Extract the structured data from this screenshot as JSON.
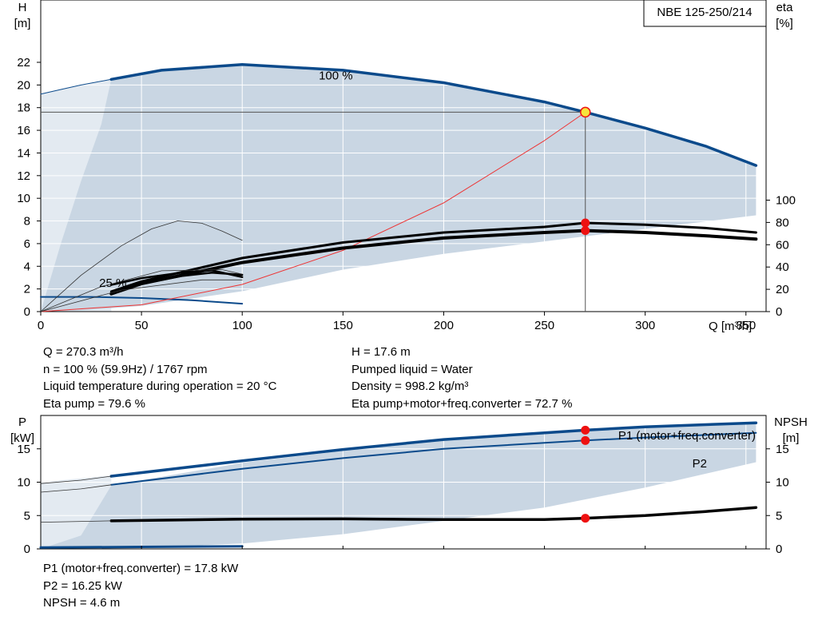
{
  "pump_name": "NBE 125-250/214",
  "colors": {
    "envelope": "#c9d6e3",
    "envelope_light": "#e3eaf1",
    "curve_blue": "#0b4a8b",
    "system_curve": "#ee3333",
    "marker": "#ee1111",
    "marker_duty": "#f7e53b",
    "guide": "#555555",
    "frame": "#000000"
  },
  "info": {
    "left": [
      "Q = 270.3 m³/h",
      "n = 100 % (59.9Hz) / 1767 rpm",
      "Liquid temperature during operation = 20 °C",
      "Eta pump = 79.6 %"
    ],
    "right": [
      "H = 17.6 m",
      "Pumped liquid = Water",
      "Density = 998.2 kg/m³",
      "Eta pump+motor+freq.converter = 72.7 %"
    ],
    "bottom": [
      "P1 (motor+freq.converter) = 17.8 kW",
      "P2 = 16.25 kW",
      "NPSH = 4.6 m"
    ]
  },
  "chart_data": [
    {
      "type": "line",
      "name": "QH / efficiency",
      "xlabel": "Q [m³/h]",
      "ylabel": "H\n[m]",
      "y2label": "eta\n[%]",
      "xlim": [
        0,
        360
      ],
      "xticks": [
        0,
        50,
        100,
        150,
        200,
        250,
        300,
        350
      ],
      "ylim": [
        0,
        27.5
      ],
      "yticks": [
        0,
        2,
        4,
        6,
        8,
        10,
        12,
        14,
        16,
        18,
        20,
        22
      ],
      "y2ticks": [
        0,
        20,
        40,
        60,
        80,
        100
      ],
      "grid": true,
      "annotations": [
        "100 %",
        "25 %"
      ],
      "duty_point": {
        "Q": 270.3,
        "H": 17.6,
        "eta_pump": 79.6,
        "eta_total": 72.7
      },
      "envelope": {
        "upper": [
          [
            0,
            0
          ],
          [
            10,
            6
          ],
          [
            20,
            11.5
          ],
          [
            30,
            16.5
          ],
          [
            35,
            20.5
          ],
          [
            60,
            21.3
          ],
          [
            100,
            21.8
          ],
          [
            150,
            21.3
          ],
          [
            200,
            20.2
          ],
          [
            250,
            18.5
          ],
          [
            270,
            17.7
          ],
          [
            300,
            16.2
          ],
          [
            330,
            14.6
          ],
          [
            355,
            12.9
          ],
          [
            355,
            8.5
          ]
        ],
        "lower": [
          [
            355,
            8.5
          ],
          [
            300,
            7.3
          ],
          [
            250,
            6.2
          ],
          [
            200,
            5.1
          ],
          [
            150,
            3.7
          ],
          [
            100,
            1.8
          ],
          [
            50,
            0.5
          ],
          [
            20,
            0.1
          ],
          [
            0,
            0
          ]
        ]
      },
      "series": [
        {
          "name": "100 %",
          "role": "qh_max",
          "points": [
            [
              35,
              20.5
            ],
            [
              60,
              21.3
            ],
            [
              100,
              21.8
            ],
            [
              150,
              21.3
            ],
            [
              200,
              20.2
            ],
            [
              250,
              18.5
            ],
            [
              270.3,
              17.6
            ],
            [
              300,
              16.2
            ],
            [
              330,
              14.6
            ],
            [
              355,
              12.9
            ]
          ]
        },
        {
          "role": "qh_extension",
          "points": [
            [
              0,
              19.2
            ],
            [
              10,
              19.6
            ],
            [
              20,
              20.0
            ],
            [
              35,
              20.5
            ]
          ]
        },
        {
          "role": "qh_min",
          "points": [
            [
              0,
              1.3
            ],
            [
              25,
              1.3
            ],
            [
              50,
              1.2
            ],
            [
              75,
              1.0
            ],
            [
              100,
              0.7
            ]
          ]
        },
        {
          "name": "system",
          "role": "system_curve",
          "points": [
            [
              0,
              0
            ],
            [
              50,
              0.6
            ],
            [
              100,
              2.4
            ],
            [
              150,
              5.4
            ],
            [
              200,
              9.6
            ],
            [
              250,
              15.1
            ],
            [
              270.3,
              17.6
            ]
          ]
        },
        {
          "role": "eta_pump_max",
          "axis": "eta",
          "points": [
            [
              35,
              18
            ],
            [
              50,
              27
            ],
            [
              100,
              48
            ],
            [
              150,
              62
            ],
            [
              200,
              71
            ],
            [
              250,
              76
            ],
            [
              270.3,
              79.6
            ],
            [
              300,
              78
            ],
            [
              330,
              75
            ],
            [
              355,
              71
            ]
          ]
        },
        {
          "role": "eta_total_max",
          "axis": "eta",
          "points": [
            [
              35,
              16
            ],
            [
              50,
              25
            ],
            [
              100,
              44
            ],
            [
              150,
              57
            ],
            [
              200,
              66
            ],
            [
              250,
              71
            ],
            [
              270.3,
              72.7
            ],
            [
              300,
              71
            ],
            [
              330,
              68
            ],
            [
              355,
              65
            ]
          ]
        },
        {
          "role": "eta_pump_min",
          "axis": "eta",
          "points": [
            [
              35,
              24
            ],
            [
              50,
              30
            ],
            [
              70,
              35
            ],
            [
              85,
              37
            ],
            [
              100,
              31
            ]
          ]
        },
        {
          "role": "eta_total_min",
          "axis": "eta",
          "points": [
            [
              35,
              17
            ],
            [
              50,
              25
            ],
            [
              70,
              32
            ],
            [
              85,
              35
            ],
            [
              100,
              33
            ]
          ]
        },
        {
          "role": "qh_thin_1",
          "points": [
            [
              0,
              0
            ],
            [
              20,
              3.2
            ],
            [
              40,
              5.8
            ],
            [
              55,
              7.3
            ],
            [
              68,
              8.0
            ],
            [
              80,
              7.8
            ],
            [
              90,
              7.1
            ],
            [
              100,
              6.3
            ]
          ]
        },
        {
          "role": "qh_thin_2",
          "points": [
            [
              0,
              0
            ],
            [
              30,
              2.2
            ],
            [
              60,
              3.6
            ],
            [
              90,
              3.7
            ],
            [
              100,
              3.3
            ]
          ]
        },
        {
          "role": "qh_thin_3",
          "points": [
            [
              0,
              0
            ],
            [
              40,
              1.9
            ],
            [
              80,
              2.8
            ],
            [
              100,
              2.8
            ]
          ]
        }
      ],
      "markers": [
        {
          "Q": 270.3,
          "value": 17.6,
          "axis": "H",
          "style": "duty"
        },
        {
          "Q": 270.3,
          "value": 79.6,
          "axis": "eta",
          "style": "point"
        },
        {
          "Q": 270.3,
          "value": 72.7,
          "axis": "eta",
          "style": "point"
        }
      ]
    },
    {
      "type": "line",
      "name": "Power / NPSH",
      "ylabel": "P\n[kW]",
      "y2label": "NPSH\n[m]",
      "xlim": [
        0,
        360
      ],
      "ylim": [
        0,
        20
      ],
      "yticks": [
        0,
        5,
        10,
        15
      ],
      "y2ticks": [
        0,
        5,
        10,
        15
      ],
      "grid": true,
      "envelope": {
        "upper": [
          [
            0,
            0
          ],
          [
            20,
            2
          ],
          [
            35,
            9.5
          ],
          [
            100,
            12.9
          ],
          [
            150,
            14.7
          ],
          [
            200,
            16.2
          ],
          [
            250,
            17.4
          ],
          [
            270,
            17.7
          ],
          [
            300,
            18.3
          ],
          [
            355,
            19.1
          ],
          [
            355,
            13
          ]
        ],
        "lower": [
          [
            355,
            13
          ],
          [
            300,
            9.2
          ],
          [
            250,
            6.2
          ],
          [
            200,
            4.2
          ],
          [
            150,
            2.2
          ],
          [
            100,
            0.8
          ],
          [
            50,
            0.2
          ],
          [
            0,
            0
          ]
        ]
      },
      "series": [
        {
          "name": "P1 (motor+freq.converter)",
          "role": "p1_max",
          "points": [
            [
              35,
              10.9
            ],
            [
              100,
              13.2
            ],
            [
              150,
              14.9
            ],
            [
              200,
              16.4
            ],
            [
              250,
              17.4
            ],
            [
              270.3,
              17.8
            ],
            [
              300,
              18.3
            ],
            [
              355,
              18.9
            ]
          ]
        },
        {
          "name": "P2",
          "role": "p2_max",
          "points": [
            [
              35,
              9.6
            ],
            [
              100,
              12.0
            ],
            [
              150,
              13.6
            ],
            [
              200,
              15.0
            ],
            [
              250,
              15.9
            ],
            [
              270.3,
              16.25
            ],
            [
              300,
              16.7
            ],
            [
              355,
              17.4
            ]
          ]
        },
        {
          "role": "p1_extension",
          "points": [
            [
              0,
              9.8
            ],
            [
              20,
              10.3
            ],
            [
              35,
              10.9
            ]
          ]
        },
        {
          "role": "p2_extension",
          "points": [
            [
              0,
              8.5
            ],
            [
              20,
              9.0
            ],
            [
              35,
              9.6
            ]
          ]
        },
        {
          "name": "NPSH",
          "role": "npsh",
          "axis": "npsh",
          "points": [
            [
              35,
              4.2
            ],
            [
              100,
              4.45
            ],
            [
              150,
              4.5
            ],
            [
              200,
              4.4
            ],
            [
              250,
              4.4
            ],
            [
              270.3,
              4.6
            ],
            [
              300,
              5.0
            ],
            [
              330,
              5.6
            ],
            [
              355,
              6.2
            ]
          ]
        },
        {
          "role": "npsh_extension",
          "axis": "npsh",
          "points": [
            [
              0,
              4.0
            ],
            [
              35,
              4.2
            ]
          ]
        },
        {
          "role": "p_min",
          "points": [
            [
              0,
              0.2
            ],
            [
              50,
              0.3
            ],
            [
              100,
              0.4
            ]
          ]
        }
      ],
      "markers": [
        {
          "Q": 270.3,
          "value": 17.8,
          "axis": "P",
          "style": "point"
        },
        {
          "Q": 270.3,
          "value": 16.25,
          "axis": "P",
          "style": "point"
        },
        {
          "Q": 270.3,
          "value": 4.6,
          "axis": "npsh",
          "style": "point"
        }
      ],
      "legend": [
        "P1 (motor+freq.converter)",
        "P2"
      ]
    }
  ]
}
